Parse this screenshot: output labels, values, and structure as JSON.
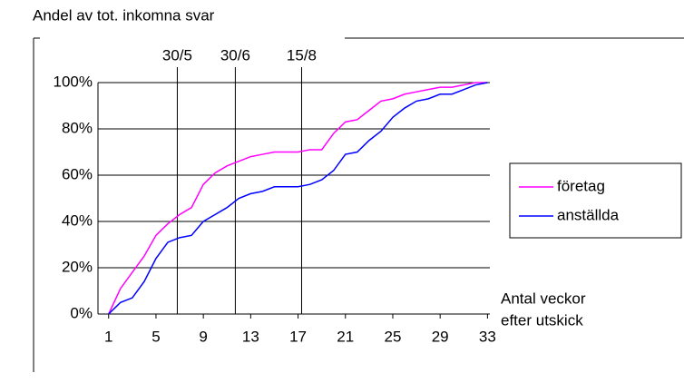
{
  "chart_data": {
    "type": "line",
    "title": "Andel av tot. inkomna svar",
    "x_label": [
      "Antal veckor",
      "efter utskick"
    ],
    "x": [
      1,
      2,
      3,
      4,
      5,
      6,
      7,
      8,
      9,
      10,
      11,
      12,
      13,
      14,
      15,
      16,
      17,
      18,
      19,
      20,
      21,
      22,
      23,
      24,
      25,
      26,
      27,
      28,
      29,
      30,
      31,
      32,
      33
    ],
    "series": [
      {
        "name": "företag",
        "color": "#ff00ff",
        "values": [
          0,
          11,
          18,
          25,
          34,
          39,
          43,
          46,
          56,
          61,
          64,
          66,
          68,
          69,
          70,
          70,
          70,
          71,
          71,
          78,
          83,
          84,
          88,
          92,
          93,
          95,
          96,
          97,
          98,
          98,
          99,
          100,
          100
        ]
      },
      {
        "name": "anställda",
        "color": "#0000ff",
        "values": [
          0,
          5,
          7,
          14,
          24,
          31,
          33,
          34,
          40,
          43,
          46,
          50,
          52,
          53,
          55,
          55,
          55,
          56,
          58,
          62,
          69,
          70,
          75,
          79,
          85,
          89,
          92,
          93,
          95,
          95,
          97,
          99,
          100
        ]
      }
    ],
    "xlim": [
      0.1,
      33.2
    ],
    "xticks": [
      1,
      5,
      9,
      13,
      17,
      21,
      25,
      29,
      33
    ],
    "ylim": [
      0,
      100
    ],
    "yticks": [
      {
        "value": 0,
        "label": "0%"
      },
      {
        "value": 20,
        "label": "20%"
      },
      {
        "value": 40,
        "label": "40%"
      },
      {
        "value": 60,
        "label": "60%"
      },
      {
        "value": 80,
        "label": "80%"
      },
      {
        "value": 100,
        "label": "100%"
      }
    ],
    "grid": true,
    "annotations": [
      {
        "x": 6.8,
        "text": "30/5"
      },
      {
        "x": 11.7,
        "text": "30/6"
      },
      {
        "x": 17.3,
        "text": "15/8"
      }
    ],
    "legend": "right"
  }
}
